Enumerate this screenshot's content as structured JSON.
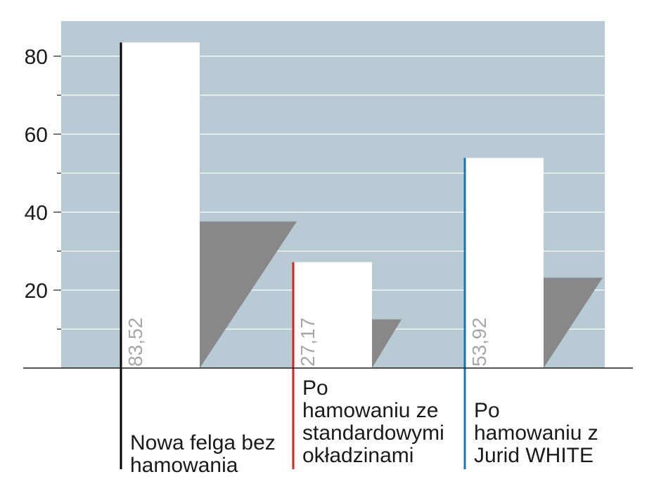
{
  "chart_data": {
    "type": "bar",
    "title": "",
    "xlabel": "",
    "ylabel": "",
    "ylim": [
      0,
      90
    ],
    "yticks": [
      20,
      40,
      60,
      80
    ],
    "grid": true,
    "background_color": "#b8cad3",
    "bar_color": "#ffffff",
    "shadow_color": "#888888",
    "categories": [
      {
        "label_lines": [
          "Nowa felga bez",
          "hamowania"
        ],
        "value": 83.52,
        "value_label": "83,52",
        "accent_color": "#000000"
      },
      {
        "label_lines": [
          "Po",
          "hamowaniu ze",
          "standardowymi",
          "okładzinami"
        ],
        "value": 27.17,
        "value_label": "27,17",
        "accent_color": "#d9261c"
      },
      {
        "label_lines": [
          "Po",
          "hamowaniu z",
          "Jurid WHITE"
        ],
        "value": 53.92,
        "value_label": "53,92",
        "accent_color": "#1673b8"
      }
    ]
  }
}
